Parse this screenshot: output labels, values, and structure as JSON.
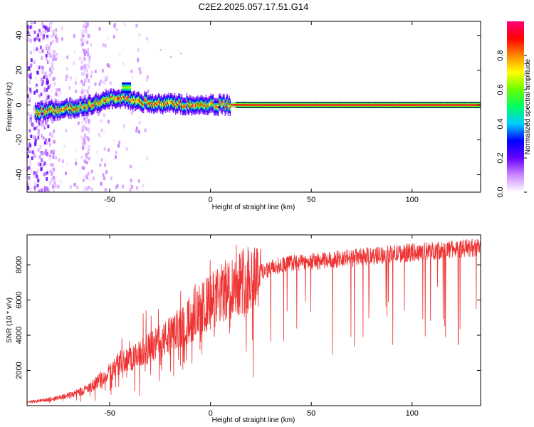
{
  "figure": {
    "title": "C2E2.2025.057.17.51.G14"
  },
  "chart_data": [
    {
      "type": "heatmap",
      "xlabel": "Height of straight line (km)",
      "ylabel": "Frequency (Hz)",
      "xlim": [
        -91,
        134
      ],
      "ylim": [
        -50,
        48
      ],
      "xticks": [
        -50,
        0,
        50,
        100
      ],
      "yticks": [
        -40,
        -20,
        0,
        20,
        40
      ],
      "colorbar": {
        "label": "Normalized spectral amplitude",
        "range": [
          0,
          1
        ],
        "ticks": [
          "0.0",
          "0.2",
          "0.4",
          "0.6",
          "0.8"
        ],
        "colors": [
          "#ffffff",
          "#cc88ff",
          "#6600ff",
          "#0000ff",
          "#00ccff",
          "#00ff66",
          "#66ff00",
          "#ffff00",
          "#ff8800",
          "#ff0000",
          "#ff0077"
        ]
      },
      "ridge": {
        "description_x": [
          -86,
          -80,
          -75,
          -70,
          -65,
          -60,
          -55,
          -50,
          -45,
          -40,
          -35,
          -30,
          -20,
          -10,
          0,
          10,
          20,
          134
        ],
        "frequency_y": [
          -4,
          -3,
          -3,
          -2,
          -1,
          0,
          2,
          3,
          4,
          3,
          2,
          1,
          0.5,
          0.3,
          0.2,
          0.1,
          0,
          0
        ]
      },
      "grid": false,
      "legend": "none"
    },
    {
      "type": "line",
      "xlabel": "Height of straight line (km)",
      "ylabel": "SNR (10 * v/v)",
      "xlim": [
        -91,
        134
      ],
      "ylim": [
        0,
        9700
      ],
      "xticks": [
        -50,
        0,
        50,
        100
      ],
      "yticks": [
        2000,
        4000,
        6000,
        8000
      ],
      "color": "#ee3333",
      "series": [
        {
          "x": [
            -91,
            -80,
            -70,
            -60,
            -50,
            -45,
            -40,
            -35,
            -30,
            -25,
            -20,
            -15,
            -10,
            -5,
            0,
            5,
            10,
            15,
            20,
            25,
            30,
            35,
            40,
            45,
            50,
            55,
            60,
            70,
            80,
            90,
            100,
            110,
            120,
            134
          ],
          "values": [
            200,
            350,
            600,
            1000,
            1900,
            2500,
            2600,
            2900,
            3300,
            3600,
            4000,
            4400,
            4900,
            5400,
            5900,
            6300,
            6700,
            7100,
            7400,
            7600,
            7800,
            8000,
            8100,
            8100,
            8200,
            8200,
            8300,
            8400,
            8500,
            8600,
            8700,
            8800,
            8900,
            9000
          ]
        }
      ],
      "grid": false,
      "legend": "none"
    }
  ]
}
